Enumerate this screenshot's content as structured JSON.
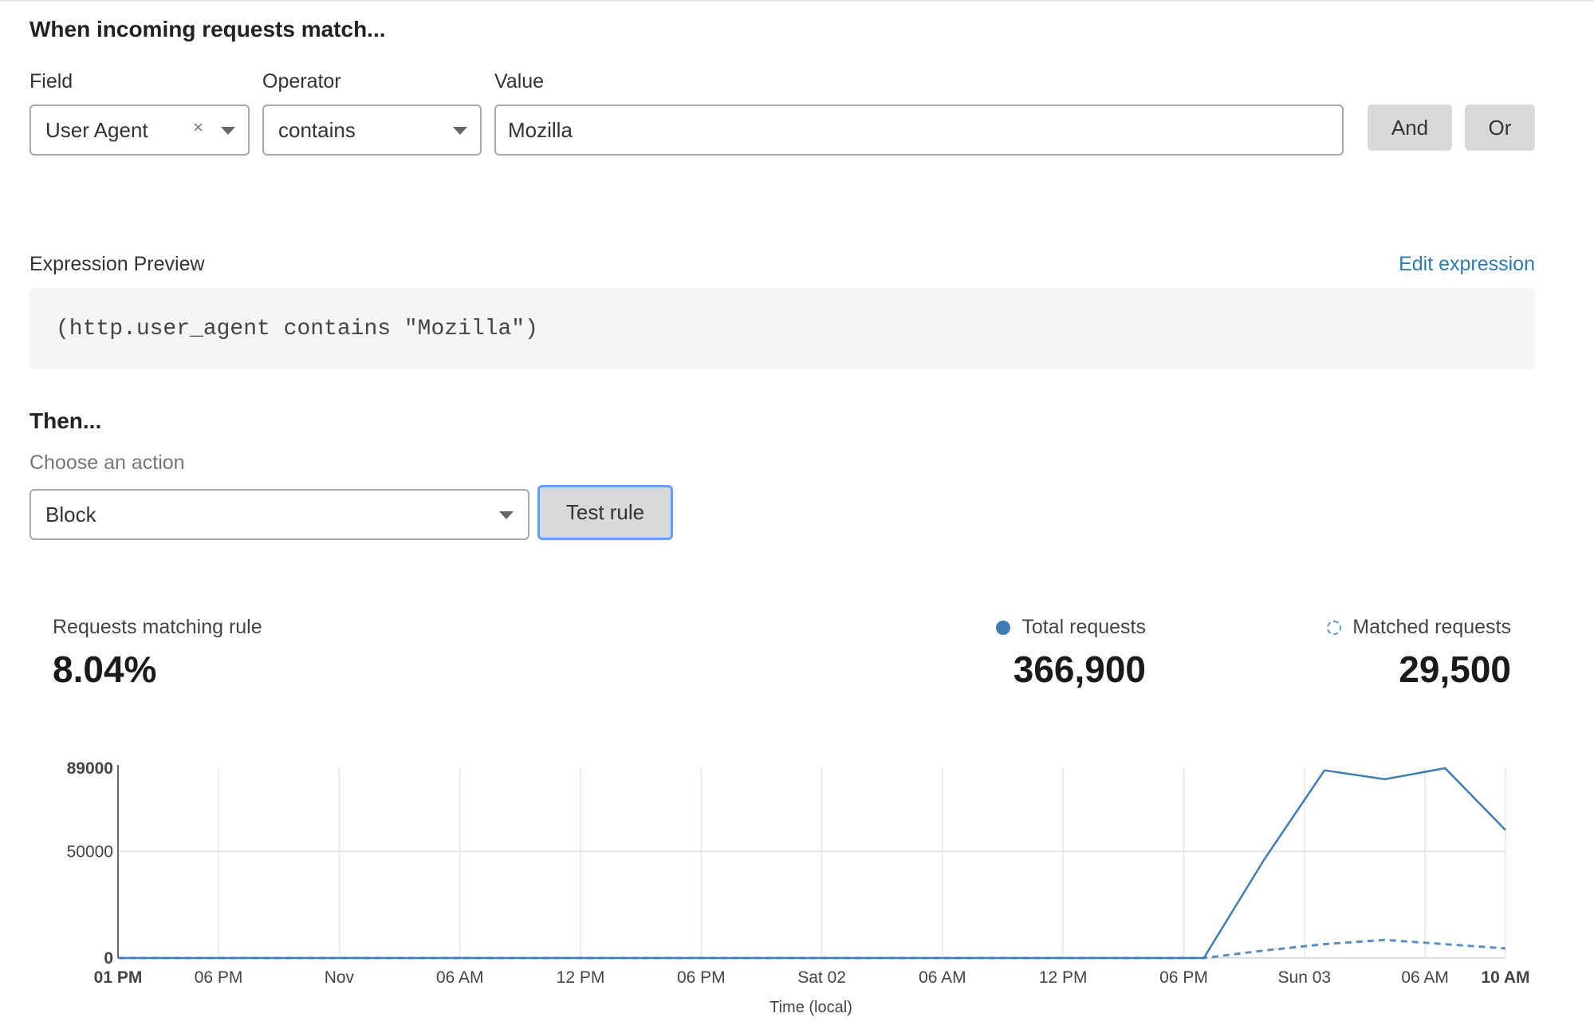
{
  "conditions": {
    "heading": "When incoming requests match...",
    "field": {
      "label": "Field",
      "value": "User Agent",
      "clear": "×"
    },
    "operator": {
      "label": "Operator",
      "value": "contains"
    },
    "value": {
      "label": "Value",
      "value": "Mozilla"
    },
    "and_label": "And",
    "or_label": "Or"
  },
  "expression": {
    "label": "Expression Preview",
    "edit_link": "Edit expression",
    "text": "(http.user_agent contains \"Mozilla\")"
  },
  "then": {
    "heading": "Then...",
    "action_label": "Choose an action",
    "action_value": "Block",
    "test_label": "Test rule"
  },
  "stats": {
    "matching_label": "Requests matching rule",
    "matching_value": "8.04%",
    "total_label": "Total requests",
    "total_value": "366,900",
    "matched_label": "Matched requests",
    "matched_value": "29,500"
  },
  "colors": {
    "accent": "#3f7cb3",
    "link": "#2c7cb0",
    "focus": "#6b9cf3"
  },
  "chart_data": {
    "type": "line",
    "xlabel": "Time (local)",
    "ylabel": "",
    "ylim": [
      0,
      89000
    ],
    "yticks": [
      "89000",
      "50000",
      "0"
    ],
    "xticks": [
      {
        "label": "01 PM",
        "t": "Oct 31 13:00",
        "bold": true
      },
      {
        "label": "06 PM",
        "t": "Oct 31 18:00"
      },
      {
        "label": "Nov",
        "t": "Nov 01 00:00"
      },
      {
        "label": "06 AM",
        "t": "Nov 01 06:00"
      },
      {
        "label": "12 PM",
        "t": "Nov 01 12:00"
      },
      {
        "label": "06 PM",
        "t": "Nov 01 18:00"
      },
      {
        "label": "Sat 02",
        "t": "Nov 02 00:00"
      },
      {
        "label": "06 AM",
        "t": "Nov 02 06:00"
      },
      {
        "label": "12 PM",
        "t": "Nov 02 12:00"
      },
      {
        "label": "06 PM",
        "t": "Nov 02 18:00"
      },
      {
        "label": "Sun 03",
        "t": "Nov 03 00:00"
      },
      {
        "label": "06 AM",
        "t": "Nov 03 06:00"
      },
      {
        "label": "10 AM",
        "t": "Nov 03 10:00",
        "bold": true
      }
    ],
    "grid": true,
    "x": [
      "Oct 31 13:00",
      "Oct 31 16:00",
      "Oct 31 19:00",
      "Oct 31 22:00",
      "Nov 01 01:00",
      "Nov 01 04:00",
      "Nov 01 07:00",
      "Nov 01 10:00",
      "Nov 01 13:00",
      "Nov 01 16:00",
      "Nov 01 19:00",
      "Nov 01 22:00",
      "Nov 02 01:00",
      "Nov 02 04:00",
      "Nov 02 07:00",
      "Nov 02 10:00",
      "Nov 02 13:00",
      "Nov 02 16:00",
      "Nov 02 19:00",
      "Nov 02 22:00",
      "Nov 03 01:00",
      "Nov 03 04:00",
      "Nov 03 07:00",
      "Nov 03 10:00"
    ],
    "series": [
      {
        "name": "Total requests",
        "style": "solid",
        "values": [
          0,
          0,
          0,
          0,
          0,
          0,
          0,
          0,
          0,
          0,
          0,
          0,
          0,
          0,
          0,
          0,
          0,
          0,
          0,
          46200,
          88000,
          83800,
          89000,
          60000
        ]
      },
      {
        "name": "Matched requests",
        "style": "dashed",
        "values": [
          0,
          0,
          0,
          0,
          0,
          0,
          0,
          0,
          0,
          0,
          0,
          0,
          0,
          0,
          0,
          0,
          0,
          0,
          0,
          3500,
          6500,
          8500,
          6500,
          4500
        ]
      }
    ]
  }
}
